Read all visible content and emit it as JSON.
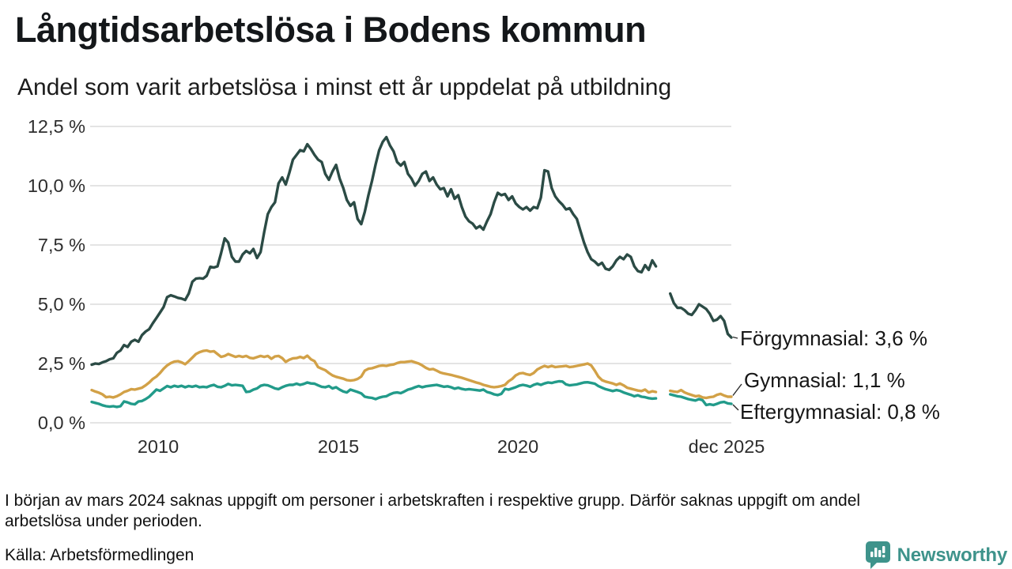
{
  "chart_data": {
    "type": "line",
    "title": "Långtidsarbetslösa i Bodens kommun",
    "subtitle": "Andel som varit arbetslösa i minst ett år uppdelat på utbildning",
    "grid": true,
    "legend_position": "end-of-line-labels",
    "x_axis": {
      "start": 2008.15,
      "step": 0.1,
      "ticks": [
        {
          "label": "2010",
          "value": 2010
        },
        {
          "label": "2015",
          "value": 2015
        },
        {
          "label": "2020",
          "value": 2020
        },
        {
          "label": "dec 2025",
          "value": 2025.9
        }
      ]
    },
    "y_axis": {
      "min": 0,
      "max": 12.5,
      "unit": "%",
      "ticks": [
        {
          "label": "0,0 %",
          "value": 0
        },
        {
          "label": "2,5 %",
          "value": 2.5
        },
        {
          "label": "5,0 %",
          "value": 5
        },
        {
          "label": "7,5 %",
          "value": 7.5
        },
        {
          "label": "10,0 %",
          "value": 10
        },
        {
          "label": "12,5 %",
          "value": 12.5
        }
      ]
    },
    "missing_data_gap": {
      "from": 2023.95,
      "to": 2024.15
    },
    "series": [
      {
        "name": "Förgymnasial",
        "color": "#2B4B45",
        "end_label": "Förgymnasial: 3,6 %",
        "end_value": 3.6,
        "values": [
          2.45,
          2.5,
          2.48,
          2.55,
          2.6,
          2.68,
          2.72,
          2.95,
          3.05,
          3.28,
          3.2,
          3.42,
          3.5,
          3.42,
          3.7,
          3.85,
          3.95,
          4.2,
          4.42,
          4.65,
          4.88,
          5.3,
          5.38,
          5.33,
          5.27,
          5.24,
          5.18,
          5.45,
          5.95,
          6.08,
          6.1,
          6.08,
          6.2,
          6.58,
          6.55,
          6.6,
          7.15,
          7.78,
          7.6,
          7.0,
          6.8,
          6.8,
          7.1,
          7.25,
          7.15,
          7.33,
          6.95,
          7.2,
          8.05,
          8.8,
          9.1,
          9.3,
          10.1,
          10.35,
          10.05,
          10.55,
          11.1,
          11.3,
          11.5,
          11.45,
          11.75,
          11.55,
          11.3,
          11.1,
          11.0,
          10.5,
          10.25,
          10.6,
          10.88,
          10.3,
          9.9,
          9.4,
          9.15,
          9.3,
          8.6,
          8.38,
          8.9,
          9.6,
          10.2,
          10.9,
          11.5,
          11.85,
          12.05,
          11.7,
          11.45,
          11.0,
          10.85,
          11.0,
          10.5,
          10.3,
          10.0,
          10.2,
          10.5,
          10.6,
          10.2,
          10.35,
          10.05,
          9.85,
          9.9,
          9.55,
          9.85,
          9.45,
          9.6,
          9.1,
          8.7,
          8.5,
          8.4,
          8.2,
          8.3,
          8.15,
          8.5,
          8.8,
          9.3,
          9.7,
          9.6,
          9.65,
          9.4,
          9.55,
          9.25,
          9.1,
          9.0,
          9.1,
          8.95,
          9.1,
          9.05,
          9.5,
          10.65,
          10.6,
          9.9,
          9.55,
          9.35,
          9.2,
          9.0,
          9.05,
          8.8,
          8.6,
          8.1,
          7.6,
          7.2,
          6.9,
          6.8,
          6.65,
          6.75,
          6.5,
          6.45,
          6.6,
          6.85,
          7.0,
          6.9,
          7.1,
          7.0,
          6.6,
          6.4,
          6.35,
          6.65,
          6.45,
          6.85,
          6.6,
          null,
          null,
          null,
          5.45,
          5.05,
          4.85,
          4.85,
          4.75,
          4.6,
          4.55,
          4.75,
          5.0,
          4.9,
          4.8,
          4.6,
          4.3,
          4.35,
          4.5,
          4.3,
          3.75,
          3.6
        ]
      },
      {
        "name": "Gymnasial",
        "color": "#D2A147",
        "end_label": "Gymnasial: 1,1 %",
        "end_value": 1.1,
        "values": [
          1.38,
          1.32,
          1.27,
          1.2,
          1.08,
          1.1,
          1.07,
          1.12,
          1.2,
          1.3,
          1.35,
          1.42,
          1.4,
          1.44,
          1.48,
          1.58,
          1.7,
          1.85,
          1.95,
          2.1,
          2.28,
          2.42,
          2.52,
          2.58,
          2.6,
          2.55,
          2.47,
          2.6,
          2.75,
          2.9,
          2.98,
          3.03,
          3.05,
          3.0,
          3.02,
          2.9,
          2.78,
          2.82,
          2.9,
          2.84,
          2.78,
          2.82,
          2.78,
          2.82,
          2.74,
          2.72,
          2.77,
          2.82,
          2.78,
          2.82,
          2.7,
          2.8,
          2.82,
          2.73,
          2.57,
          2.66,
          2.72,
          2.73,
          2.78,
          2.73,
          2.83,
          2.68,
          2.6,
          2.35,
          2.28,
          2.22,
          2.1,
          2.0,
          1.94,
          1.9,
          1.86,
          1.8,
          1.78,
          1.8,
          1.85,
          1.95,
          2.2,
          2.28,
          2.3,
          2.35,
          2.4,
          2.42,
          2.4,
          2.44,
          2.46,
          2.52,
          2.56,
          2.56,
          2.58,
          2.6,
          2.55,
          2.5,
          2.42,
          2.32,
          2.25,
          2.27,
          2.2,
          2.12,
          2.08,
          2.05,
          2.02,
          1.98,
          1.94,
          1.9,
          1.85,
          1.8,
          1.75,
          1.7,
          1.66,
          1.6,
          1.56,
          1.52,
          1.5,
          1.52,
          1.55,
          1.6,
          1.75,
          1.85,
          2.0,
          2.08,
          2.1,
          2.05,
          2.02,
          2.1,
          2.25,
          2.33,
          2.4,
          2.35,
          2.4,
          2.35,
          2.37,
          2.38,
          2.4,
          2.35,
          2.37,
          2.4,
          2.43,
          2.46,
          2.5,
          2.42,
          2.2,
          1.95,
          1.8,
          1.74,
          1.7,
          1.66,
          1.6,
          1.66,
          1.58,
          1.48,
          1.44,
          1.4,
          1.36,
          1.34,
          1.4,
          1.28,
          1.33,
          1.3,
          null,
          null,
          null,
          1.35,
          1.32,
          1.3,
          1.38,
          1.28,
          1.22,
          1.17,
          1.12,
          1.14,
          1.07,
          1.05,
          1.08,
          1.1,
          1.18,
          1.22,
          1.15,
          1.1,
          1.1
        ]
      },
      {
        "name": "Eftergymnasial",
        "color": "#229B8A",
        "end_label": "Eftergymnasial: 0,8 %",
        "end_value": 0.8,
        "values": [
          0.88,
          0.84,
          0.8,
          0.74,
          0.7,
          0.68,
          0.7,
          0.67,
          0.7,
          0.9,
          0.86,
          0.8,
          0.78,
          0.9,
          0.92,
          1.0,
          1.1,
          1.25,
          1.4,
          1.35,
          1.45,
          1.55,
          1.5,
          1.56,
          1.52,
          1.56,
          1.5,
          1.55,
          1.52,
          1.56,
          1.5,
          1.52,
          1.5,
          1.56,
          1.6,
          1.52,
          1.5,
          1.56,
          1.64,
          1.58,
          1.6,
          1.58,
          1.56,
          1.3,
          1.32,
          1.4,
          1.45,
          1.56,
          1.6,
          1.58,
          1.52,
          1.45,
          1.42,
          1.5,
          1.56,
          1.6,
          1.6,
          1.65,
          1.6,
          1.64,
          1.7,
          1.66,
          1.65,
          1.58,
          1.52,
          1.5,
          1.55,
          1.45,
          1.5,
          1.4,
          1.32,
          1.28,
          1.4,
          1.35,
          1.3,
          1.24,
          1.1,
          1.07,
          1.05,
          1.0,
          1.06,
          1.1,
          1.12,
          1.2,
          1.26,
          1.28,
          1.25,
          1.32,
          1.4,
          1.44,
          1.5,
          1.55,
          1.5,
          1.54,
          1.56,
          1.58,
          1.6,
          1.56,
          1.52,
          1.54,
          1.5,
          1.44,
          1.48,
          1.43,
          1.4,
          1.42,
          1.4,
          1.38,
          1.36,
          1.4,
          1.3,
          1.26,
          1.2,
          1.17,
          1.22,
          1.43,
          1.4,
          1.45,
          1.5,
          1.57,
          1.6,
          1.57,
          1.52,
          1.6,
          1.65,
          1.6,
          1.66,
          1.7,
          1.68,
          1.72,
          1.75,
          1.74,
          1.62,
          1.58,
          1.6,
          1.62,
          1.66,
          1.7,
          1.71,
          1.68,
          1.65,
          1.55,
          1.48,
          1.42,
          1.38,
          1.34,
          1.38,
          1.35,
          1.28,
          1.23,
          1.18,
          1.12,
          1.16,
          1.1,
          1.08,
          1.04,
          1.02,
          1.03,
          null,
          null,
          null,
          1.2,
          1.16,
          1.12,
          1.1,
          1.05,
          1.0,
          0.97,
          0.94,
          1.0,
          0.95,
          0.75,
          0.78,
          0.75,
          0.8,
          0.86,
          0.88,
          0.82,
          0.8
        ]
      }
    ]
  },
  "footnote": {
    "note": "I början av mars 2024 saknas uppgift om personer i arbetskraften i respektive grupp. Därför saknas uppgift om andel arbetslösa under perioden.",
    "source": "Källa: Arbetsförmedlingen"
  },
  "branding": {
    "logo_text": "Newsworthy",
    "logo_color": "#3E938B"
  }
}
